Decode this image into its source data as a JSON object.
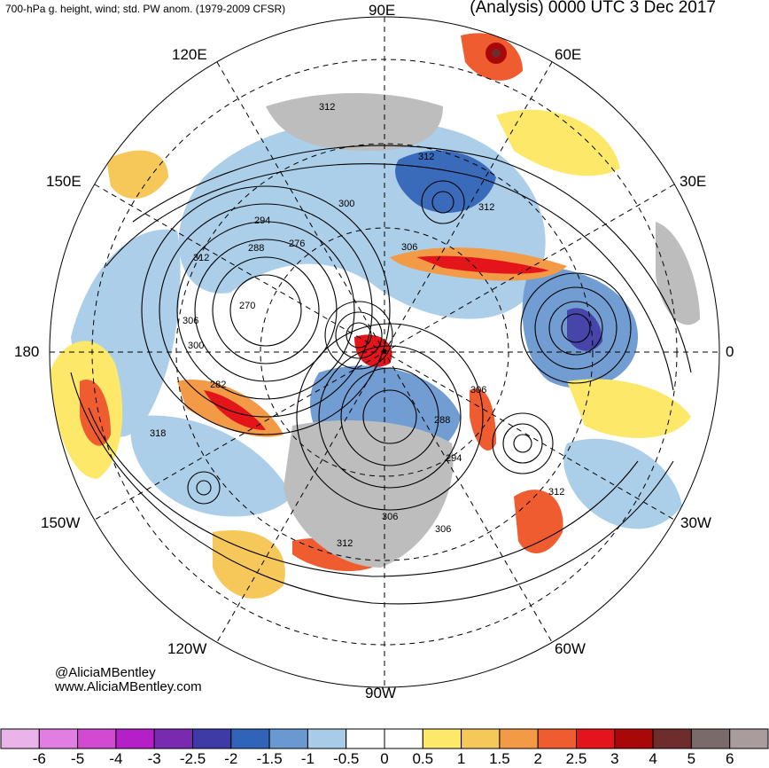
{
  "header": {
    "left_title": "700-hPa g. height, wind; std. PW anom. (1979-2009 CFSR)",
    "right_title": "(Analysis) 0000 UTC 3 Dec 2017"
  },
  "longitude_labels": [
    "90E",
    "60E",
    "30E",
    "0",
    "30W",
    "60W",
    "90W",
    "120W",
    "150W",
    "180",
    "150E",
    "120E"
  ],
  "contour_labels": [
    "312",
    "312",
    "300",
    "294",
    "288",
    "276",
    "312",
    "306",
    "312",
    "270",
    "306",
    "300",
    "282",
    "318",
    "306",
    "288",
    "294",
    "306",
    "306",
    "312",
    "312"
  ],
  "credit": {
    "handle": "@AliciaMBentley",
    "website": "www.AliciaMBentley.com"
  },
  "colorbar": {
    "ticks": [
      "-6",
      "-5",
      "-4",
      "-3",
      "-2.5",
      "-2",
      "-1.5",
      "-1",
      "-0.5",
      "0",
      "0.5",
      "1",
      "1.5",
      "2",
      "2.5",
      "3",
      "4",
      "5",
      "6"
    ],
    "colors": [
      "#e9b4e9",
      "#e27ee2",
      "#d24ad2",
      "#b41fc8",
      "#7a2ab0",
      "#3e3aa6",
      "#3064b8",
      "#6a98d0",
      "#a8cce8",
      "#ffffff",
      "#ffffff",
      "#fde86a",
      "#f6c85a",
      "#f39a46",
      "#ef5c30",
      "#e3151a",
      "#a80808",
      "#6e2c2c",
      "#7b6a6a",
      "#a89c9c"
    ]
  }
}
